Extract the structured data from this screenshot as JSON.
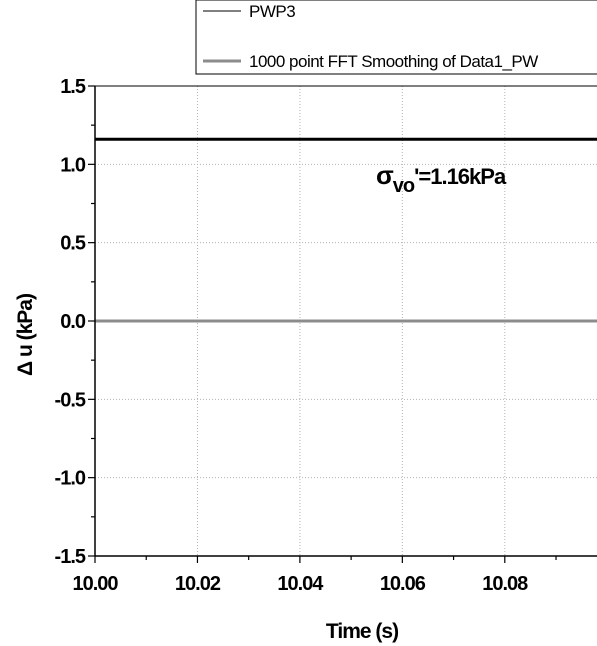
{
  "chart_data": {
    "type": "line",
    "title": "",
    "xlabel": "Time (s)",
    "ylabel": "Δ u (kPa)",
    "xlim": [
      10.0,
      10.098
    ],
    "ylim": [
      -1.5,
      1.5
    ],
    "x_ticks": [
      10.0,
      10.02,
      10.04,
      10.06,
      10.08
    ],
    "x_tick_labels": [
      "10.00",
      "10.02",
      "10.04",
      "10.06",
      "10.08"
    ],
    "y_ticks": [
      1.5,
      1.0,
      0.5,
      0.0,
      -0.5,
      -1.0,
      -1.5
    ],
    "y_tick_labels": [
      "1.5",
      "1.0",
      "0.5",
      "0.0",
      "-0.5",
      "-1.0",
      "-1.5"
    ],
    "grid": true,
    "legend_position": "top-right",
    "series": [
      {
        "name": "PWP3",
        "color": "#000000",
        "x": [
          10.0,
          10.098
        ],
        "y": [
          0.0,
          0.0
        ]
      },
      {
        "name": "1000 point FFT Smoothing of Data1_PW",
        "color": "#8c8c8c",
        "x": [
          10.0,
          10.098
        ],
        "y": [
          0.0,
          0.0
        ]
      }
    ],
    "reference_lines": [
      {
        "y": 1.16,
        "color": "#000000"
      }
    ],
    "annotations": [
      {
        "sigma": "σ",
        "subscript": "vo",
        "text": "'=1.16kPa"
      }
    ]
  }
}
